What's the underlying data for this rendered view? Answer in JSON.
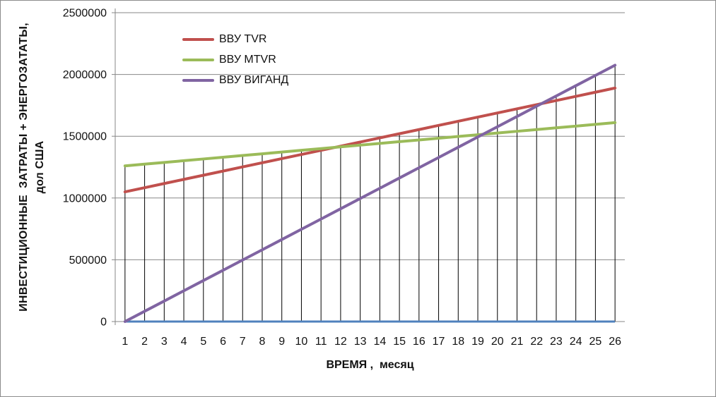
{
  "window": {
    "background": "#ffffff",
    "border_color": "#8c8c8c"
  },
  "chart_data": {
    "type": "line",
    "title": "",
    "xlabel": "ВРЕМЯ ,  месяц",
    "ylabel_line1": "ИНВЕСТИЦИОННЫЕ  ЗАТРАТЫ + ЭНЕРГОЗАТАТЫ,",
    "ylabel_line2": "дол США",
    "categories": [
      1,
      2,
      3,
      4,
      5,
      6,
      7,
      8,
      9,
      10,
      11,
      12,
      13,
      14,
      15,
      16,
      17,
      18,
      19,
      20,
      21,
      22,
      23,
      24,
      25,
      26
    ],
    "ylim": [
      0,
      2500000
    ],
    "yticks": [
      0,
      500000,
      1000000,
      1500000,
      2000000,
      2500000
    ],
    "grid": "horizontal-major",
    "drop_lines": true,
    "legend_position": "inside-top-left",
    "series": [
      {
        "name": "ВВУ TVR",
        "color": "#C0504D",
        "values": [
          1050000,
          1083600,
          1117200,
          1150800,
          1184400,
          1218000,
          1251600,
          1285200,
          1318800,
          1352400,
          1386000,
          1419600,
          1453200,
          1486800,
          1520400,
          1554000,
          1587600,
          1621200,
          1654800,
          1688400,
          1722000,
          1755600,
          1789200,
          1822800,
          1856400,
          1890000
        ]
      },
      {
        "name": "ВВУ MTVR",
        "color": "#9BBB59",
        "values": [
          1260000,
          1274000,
          1288000,
          1302000,
          1316000,
          1330000,
          1344000,
          1358000,
          1372000,
          1386000,
          1400000,
          1414000,
          1428000,
          1442000,
          1456000,
          1470000,
          1484000,
          1498000,
          1512000,
          1526000,
          1540000,
          1554000,
          1568000,
          1582000,
          1596000,
          1610000
        ]
      },
      {
        "name": "ВВУ ВИГАНД",
        "color": "#8064A2",
        "values": [
          0,
          83000,
          166000,
          249000,
          332000,
          415000,
          498000,
          581000,
          664000,
          747000,
          830000,
          913000,
          996000,
          1079000,
          1162000,
          1245000,
          1328000,
          1411000,
          1494000,
          1577000,
          1660000,
          1743000,
          1826000,
          1909000,
          1992000,
          2075000
        ]
      }
    ],
    "baseline_series": {
      "name": "zero-baseline",
      "color": "#4F81BD",
      "value": 0
    },
    "style_colors": {
      "gridline": "#878787",
      "axis": "#878787",
      "drop_line": "#000000",
      "tick_text": "#111111"
    }
  }
}
